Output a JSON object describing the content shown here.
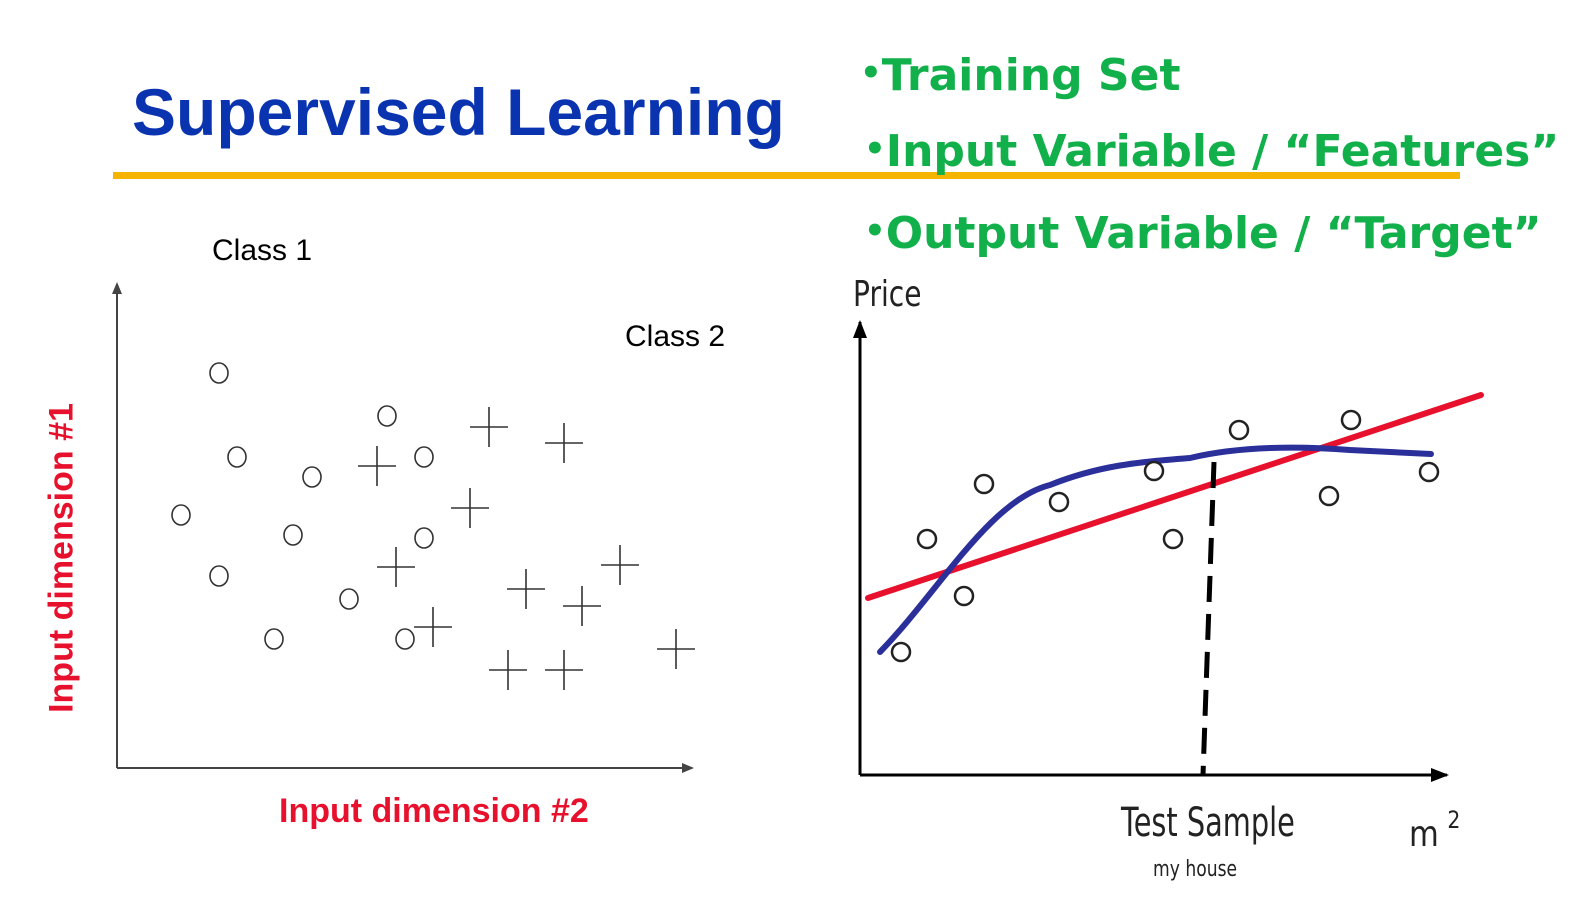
{
  "title": "Supervised Learning",
  "bullets": [
    "Training Set",
    "Input Variable / “Features”",
    "Output Variable / “Target”"
  ],
  "bullet_glyph": "•",
  "left_diagram": {
    "class1_label": "Class 1",
    "class2_label": "Class 2",
    "x_axis_label": "Input dimension #2",
    "y_axis_label": "Input dimension #1",
    "circle_marker": "O",
    "cross_marker": "+"
  },
  "right_diagram": {
    "y_axis_label": "Price",
    "x_axis_label": "m",
    "x_axis_label_superscript": "2",
    "test_label": "Test Sample",
    "test_sublabel": "my house",
    "linear_fit_color": "#e8112d",
    "curve_fit_color": "#2b2f9a"
  },
  "colors": {
    "title": "#0a33b0",
    "bullets": "#12b04a",
    "axis_labels": "#e8112d",
    "rule": "#f5b400"
  }
}
